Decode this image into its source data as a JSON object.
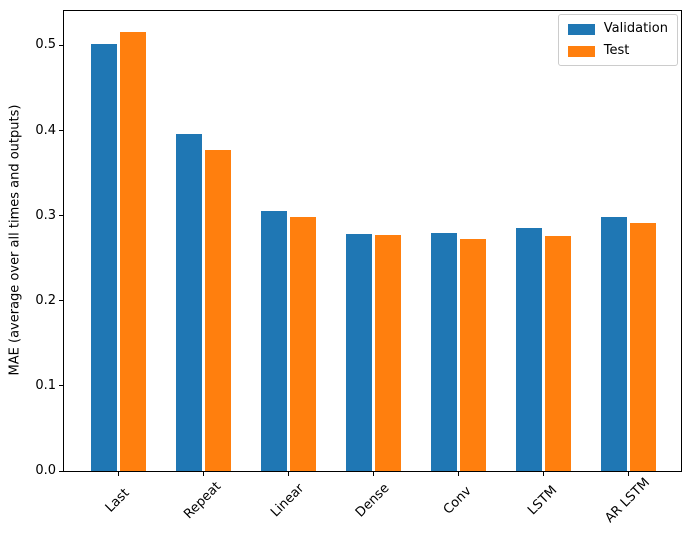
{
  "chart_data": {
    "type": "bar",
    "title": "",
    "xlabel": "",
    "ylabel": "MAE (average over all times and outputs)",
    "categories": [
      "Last",
      "Repeat",
      "Linear",
      "Dense",
      "Conv",
      "LSTM",
      "AR LSTM"
    ],
    "series": [
      {
        "name": "Validation",
        "color": "#1f77b4",
        "values": [
          0.502,
          0.396,
          0.306,
          0.279,
          0.28,
          0.285,
          0.298
        ]
      },
      {
        "name": "Test",
        "color": "#ff7f0e",
        "values": [
          0.516,
          0.377,
          0.299,
          0.277,
          0.273,
          0.276,
          0.292
        ]
      }
    ],
    "ylim": [
      0,
      0.5405
    ],
    "yticks": [
      0.0,
      0.1,
      0.2,
      0.3,
      0.4,
      0.5
    ],
    "ytick_labels": [
      "0.0",
      "0.1",
      "0.2",
      "0.3",
      "0.4",
      "0.5"
    ],
    "grid": false,
    "legend": {
      "position": "upper right",
      "entries": [
        "Validation",
        "Test"
      ]
    }
  }
}
